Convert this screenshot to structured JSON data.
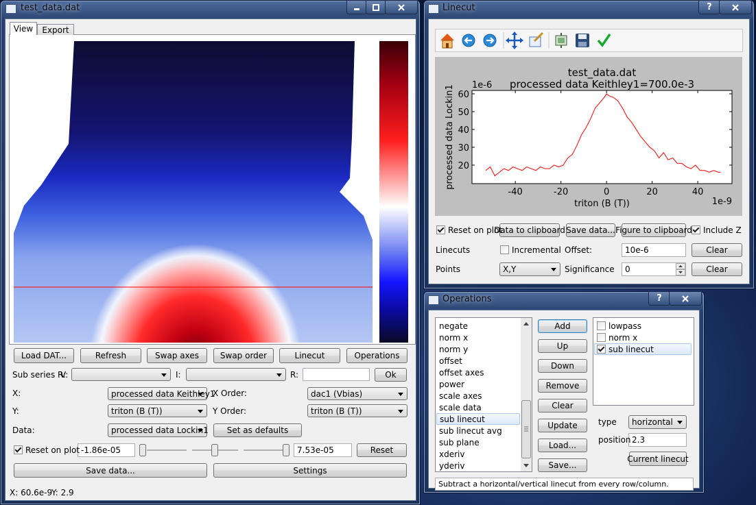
{
  "main_window": {
    "title": "test_data.dat",
    "tabs": [
      "View",
      "Export"
    ],
    "buttons": [
      "Load DAT...",
      "Refresh",
      "Swap axes",
      "Swap order",
      "Linecut",
      "Operations"
    ],
    "sub_series_label": "Sub series R:",
    "v_label": "V:",
    "i_label": "I:",
    "r_label": "R:",
    "ok": "Ok",
    "x_label": "X:",
    "x_value": "processed data Keithley1",
    "x_order_label": "X Order:",
    "x_order_value": "dac1 (Vbias)",
    "y_label": "Y:",
    "y_value": "triton (B (T))",
    "y_order_label": "Y Order:",
    "y_order_value": "triton (B (T))",
    "data_label": "Data:",
    "data_value": "processed data Lockin1",
    "set_defaults": "Set as defaults",
    "reset_on_plot": {
      "label": "Reset on plot",
      "checked": true
    },
    "min": "-1.86e-05",
    "max": "7.53e-05",
    "reset": "Reset",
    "save_data": "Save data...",
    "settings": "Settings",
    "status_x": "X: 60.6e-9",
    "status_y": "Y: 2.9"
  },
  "linecut_window": {
    "title": "Linecut",
    "help": "?",
    "chart_data": {
      "type": "line",
      "title": "test_data.dat",
      "subtitle": "processed data Keithley1=700.0e-3",
      "xlabel": "triton (B (T))",
      "ylabel": "processed data Lockin1",
      "x_multiplier": "1e-9",
      "y_multiplier": "1e-6",
      "x": [
        -53,
        -51,
        -49,
        -47,
        -45,
        -43,
        -41,
        -39,
        -37,
        -35,
        -33,
        -31,
        -29,
        -27,
        -25,
        -23,
        -21,
        -19,
        -17,
        -15,
        -13,
        -11,
        -9,
        -7,
        -5,
        -3,
        -1,
        0,
        1,
        3,
        5,
        7,
        9,
        11,
        13,
        15,
        17,
        19,
        21,
        23,
        25,
        27,
        29,
        31,
        33,
        35,
        37,
        39,
        41,
        43,
        45,
        47,
        49,
        50
      ],
      "series": [
        {
          "name": "processed data Lockin1",
          "color": "#ff0000",
          "values": [
            17,
            19,
            14,
            16,
            18,
            17,
            19,
            18,
            17,
            19,
            18,
            17,
            19,
            18,
            18,
            20,
            19,
            20,
            24,
            26,
            31,
            37,
            41,
            46,
            52,
            55,
            58,
            60,
            59,
            58,
            56,
            52,
            47,
            44,
            40,
            36,
            33,
            30,
            28,
            24,
            27,
            23,
            24,
            21,
            21,
            19,
            18,
            20,
            17,
            17,
            16,
            17,
            16,
            16
          ]
        }
      ],
      "xlim": [
        -59,
        55
      ],
      "ylim": [
        9.6,
        61.9
      ],
      "xticks": [
        -40,
        -20,
        0,
        20,
        40
      ],
      "yticks": [
        20,
        30,
        40,
        50,
        60
      ]
    },
    "reset_on_plot": {
      "label": "Reset on plot",
      "checked": true
    },
    "data_to_clipboard": "Data to clipboard",
    "save_data": "Save data...",
    "figure_to_clipboard": "Figure to clipboard",
    "include_z": {
      "label": "Include Z",
      "checked": true
    },
    "linecuts_label": "Linecuts",
    "incremental": {
      "label": "Incremental",
      "checked": false
    },
    "offset_label": "Offset:",
    "offset_value": "10e-6",
    "offset_clear": "Clear",
    "points_label": "Points",
    "points_value": "X,Y",
    "significance_label": "Significance",
    "significance_value": "0",
    "significance_clear": "Clear"
  },
  "operations_window": {
    "title": "Operations",
    "help": "?",
    "available": [
      "negate",
      "norm x",
      "norm y",
      "offset",
      "offset axes",
      "power",
      "scale axes",
      "scale data",
      "sub linecut",
      "sub linecut avg",
      "sub plane",
      "xderiv",
      "yderiv"
    ],
    "available_selected": 8,
    "buttons": [
      "Add",
      "Up",
      "Down",
      "Remove",
      "Clear",
      "Update",
      "Load...",
      "Save..."
    ],
    "applied": [
      {
        "label": "lowpass",
        "checked": false
      },
      {
        "label": "norm x",
        "checked": false
      },
      {
        "label": "sub linecut",
        "checked": true
      }
    ],
    "applied_selected": 2,
    "type_label": "type",
    "type_value": "horizontal",
    "position_label": "position",
    "position_value": "2.3",
    "current_linecut": "Current linecut",
    "description": "Subtract a horizontal/vertical linecut from every row/column."
  }
}
